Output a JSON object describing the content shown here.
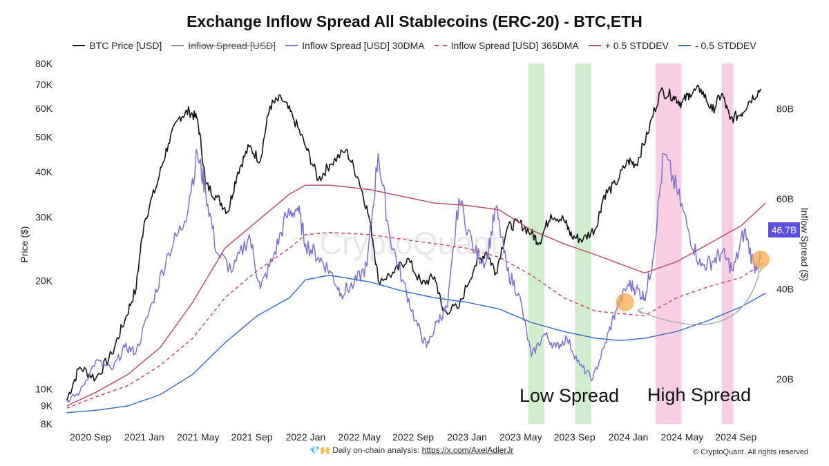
{
  "chart_data": {
    "type": "line",
    "title": "Exchange Inflow Spread All Stablecoins (ERC-20) - BTC,ETH",
    "legend": [
      {
        "name": "BTC Price [USD]",
        "color": "#111111",
        "style": "solid",
        "hidden": false
      },
      {
        "name": "Inflow Spread [USD]",
        "color": "#888888",
        "style": "solid",
        "hidden": true
      },
      {
        "name": "Inflow Spread [USD] 30DMA",
        "color": "#7b6fd6",
        "style": "solid",
        "hidden": false
      },
      {
        "name": "Inflow Spread [USD] 365DMA",
        "color": "#c94a5a",
        "style": "dashed",
        "hidden": false
      },
      {
        "name": "+ 0.5 STDDEV",
        "color": "#b5506a",
        "style": "solid",
        "hidden": false
      },
      {
        "name": "- 0.5 STDDEV",
        "color": "#3d6fc2",
        "style": "solid",
        "hidden": false
      }
    ],
    "x_ticks": [
      "2020 Sep",
      "2021 Jan",
      "2021 May",
      "2021 Sep",
      "2022 Jan",
      "2022 May",
      "2022 Sep",
      "2023 Jan",
      "2023 May",
      "2023 Sep",
      "2024 Jan",
      "2024 May",
      "2024 Sep"
    ],
    "y_left": {
      "label": "Price ($)",
      "scale": "log",
      "range": [
        8000,
        80000
      ],
      "ticks": [
        8000,
        9000,
        10000,
        20000,
        30000,
        40000,
        50000,
        60000,
        70000,
        80000
      ],
      "tick_labels": [
        "8K",
        "9K",
        "10K",
        "20K",
        "30K",
        "40K",
        "50K",
        "60K",
        "70K",
        "80K"
      ]
    },
    "y_right": {
      "label": "Inflow Spread ($)",
      "range": [
        10,
        90
      ],
      "unit": "B",
      "ticks": [
        20,
        40,
        60,
        80
      ],
      "tick_labels": [
        "20B",
        "40B",
        "60B",
        "80B"
      ]
    },
    "current_value_label": "46.7B",
    "time_range": [
      2020.5,
      2024.85
    ],
    "series": [
      {
        "name": "BTC Price [USD]",
        "axis": "left",
        "points": [
          [
            2020.52,
            9300
          ],
          [
            2020.6,
            11500
          ],
          [
            2020.7,
            10700
          ],
          [
            2020.8,
            12500
          ],
          [
            2020.88,
            15500
          ],
          [
            2020.95,
            19000
          ],
          [
            2021.0,
            29000
          ],
          [
            2021.08,
            37000
          ],
          [
            2021.15,
            48000
          ],
          [
            2021.22,
            57000
          ],
          [
            2021.28,
            59000
          ],
          [
            2021.33,
            56000
          ],
          [
            2021.38,
            37000
          ],
          [
            2021.45,
            34000
          ],
          [
            2021.52,
            31000
          ],
          [
            2021.58,
            40000
          ],
          [
            2021.65,
            47000
          ],
          [
            2021.72,
            43000
          ],
          [
            2021.78,
            61000
          ],
          [
            2021.85,
            64000
          ],
          [
            2021.92,
            57000
          ],
          [
            2022.0,
            47000
          ],
          [
            2022.08,
            38000
          ],
          [
            2022.15,
            42000
          ],
          [
            2022.25,
            46000
          ],
          [
            2022.33,
            38000
          ],
          [
            2022.4,
            29000
          ],
          [
            2022.45,
            20000
          ],
          [
            2022.55,
            21000
          ],
          [
            2022.63,
            23000
          ],
          [
            2022.72,
            19500
          ],
          [
            2022.8,
            20500
          ],
          [
            2022.85,
            16500
          ],
          [
            2022.95,
            16800
          ],
          [
            2023.05,
            22000
          ],
          [
            2023.12,
            24000
          ],
          [
            2023.18,
            21000
          ],
          [
            2023.25,
            28000
          ],
          [
            2023.32,
            29000
          ],
          [
            2023.4,
            27000
          ],
          [
            2023.45,
            25500
          ],
          [
            2023.52,
            30500
          ],
          [
            2023.6,
            29500
          ],
          [
            2023.65,
            26500
          ],
          [
            2023.72,
            26000
          ],
          [
            2023.8,
            28000
          ],
          [
            2023.85,
            34500
          ],
          [
            2023.92,
            37000
          ],
          [
            2024.0,
            43000
          ],
          [
            2024.05,
            42000
          ],
          [
            2024.12,
            51000
          ],
          [
            2024.2,
            67000
          ],
          [
            2024.28,
            65000
          ],
          [
            2024.33,
            62000
          ],
          [
            2024.38,
            66000
          ],
          [
            2024.45,
            68000
          ],
          [
            2024.52,
            59000
          ],
          [
            2024.58,
            66000
          ],
          [
            2024.63,
            56000
          ],
          [
            2024.7,
            58000
          ],
          [
            2024.75,
            63000
          ],
          [
            2024.82,
            68000
          ]
        ]
      },
      {
        "name": "Inflow Spread [USD] 30DMA",
        "axis": "right",
        "points": [
          [
            2020.52,
            15
          ],
          [
            2020.6,
            17
          ],
          [
            2020.7,
            24
          ],
          [
            2020.8,
            22
          ],
          [
            2020.88,
            27
          ],
          [
            2020.95,
            26
          ],
          [
            2021.05,
            37
          ],
          [
            2021.15,
            48
          ],
          [
            2021.25,
            55
          ],
          [
            2021.33,
            70
          ],
          [
            2021.38,
            62
          ],
          [
            2021.45,
            48
          ],
          [
            2021.55,
            44
          ],
          [
            2021.65,
            52
          ],
          [
            2021.72,
            40
          ],
          [
            2021.8,
            47
          ],
          [
            2021.88,
            56
          ],
          [
            2021.95,
            58
          ],
          [
            2022.0,
            50
          ],
          [
            2022.08,
            47
          ],
          [
            2022.15,
            44
          ],
          [
            2022.22,
            39
          ],
          [
            2022.3,
            41
          ],
          [
            2022.38,
            45
          ],
          [
            2022.45,
            70
          ],
          [
            2022.52,
            52
          ],
          [
            2022.6,
            42
          ],
          [
            2022.68,
            33
          ],
          [
            2022.75,
            27
          ],
          [
            2022.82,
            33
          ],
          [
            2022.88,
            36
          ],
          [
            2022.95,
            60
          ],
          [
            2023.05,
            48
          ],
          [
            2023.12,
            46
          ],
          [
            2023.18,
            58
          ],
          [
            2023.25,
            44
          ],
          [
            2023.32,
            39
          ],
          [
            2023.4,
            25
          ],
          [
            2023.48,
            30
          ],
          [
            2023.55,
            27
          ],
          [
            2023.62,
            29
          ],
          [
            2023.7,
            23
          ],
          [
            2023.78,
            20
          ],
          [
            2023.85,
            27
          ],
          [
            2023.92,
            35
          ],
          [
            2024.0,
            41
          ],
          [
            2024.05,
            40
          ],
          [
            2024.1,
            38
          ],
          [
            2024.15,
            46
          ],
          [
            2024.22,
            70
          ],
          [
            2024.3,
            62
          ],
          [
            2024.38,
            52
          ],
          [
            2024.45,
            45
          ],
          [
            2024.52,
            46
          ],
          [
            2024.58,
            48
          ],
          [
            2024.65,
            44
          ],
          [
            2024.72,
            53
          ],
          [
            2024.78,
            45
          ],
          [
            2024.83,
            46.7
          ]
        ]
      },
      {
        "name": "Inflow Spread [USD] 365DMA",
        "axis": "right",
        "points": [
          [
            2020.52,
            13.5
          ],
          [
            2020.7,
            16
          ],
          [
            2020.9,
            18.5
          ],
          [
            2021.1,
            23
          ],
          [
            2021.3,
            29
          ],
          [
            2021.5,
            38
          ],
          [
            2021.7,
            44
          ],
          [
            2021.9,
            49
          ],
          [
            2022.0,
            52
          ],
          [
            2022.15,
            52.5
          ],
          [
            2022.4,
            52
          ],
          [
            2022.6,
            51
          ],
          [
            2022.8,
            50
          ],
          [
            2023.0,
            49
          ],
          [
            2023.2,
            47
          ],
          [
            2023.4,
            43
          ],
          [
            2023.6,
            38
          ],
          [
            2023.8,
            35
          ],
          [
            2023.95,
            34.5
          ],
          [
            2024.1,
            34
          ],
          [
            2024.3,
            38
          ],
          [
            2024.5,
            40.5
          ],
          [
            2024.7,
            42.5
          ],
          [
            2024.85,
            46
          ]
        ]
      },
      {
        "name": "+ 0.5 STDDEV",
        "axis": "right",
        "points": [
          [
            2020.52,
            14
          ],
          [
            2020.7,
            17
          ],
          [
            2020.9,
            21
          ],
          [
            2021.1,
            27
          ],
          [
            2021.3,
            37
          ],
          [
            2021.5,
            49
          ],
          [
            2021.7,
            55
          ],
          [
            2021.9,
            61
          ],
          [
            2022.0,
            63
          ],
          [
            2022.15,
            63
          ],
          [
            2022.4,
            62
          ],
          [
            2022.6,
            60.5
          ],
          [
            2022.8,
            59
          ],
          [
            2023.0,
            58.5
          ],
          [
            2023.2,
            57.5
          ],
          [
            2023.4,
            53
          ],
          [
            2023.6,
            50
          ],
          [
            2023.8,
            47.5
          ],
          [
            2023.95,
            45.5
          ],
          [
            2024.1,
            43.5
          ],
          [
            2024.3,
            46
          ],
          [
            2024.5,
            50
          ],
          [
            2024.7,
            54
          ],
          [
            2024.85,
            59
          ]
        ]
      },
      {
        "name": "- 0.5 STDDEV",
        "axis": "right",
        "points": [
          [
            2020.52,
            12.5
          ],
          [
            2020.7,
            13
          ],
          [
            2020.9,
            14
          ],
          [
            2021.1,
            16.5
          ],
          [
            2021.3,
            21
          ],
          [
            2021.5,
            28
          ],
          [
            2021.7,
            34
          ],
          [
            2021.9,
            38
          ],
          [
            2022.0,
            42
          ],
          [
            2022.15,
            43
          ],
          [
            2022.4,
            41.5
          ],
          [
            2022.6,
            39.5
          ],
          [
            2022.8,
            38
          ],
          [
            2023.0,
            37
          ],
          [
            2023.2,
            35.5
          ],
          [
            2023.4,
            32.5
          ],
          [
            2023.6,
            30.5
          ],
          [
            2023.8,
            29
          ],
          [
            2023.95,
            28.5
          ],
          [
            2024.1,
            29
          ],
          [
            2024.3,
            30.5
          ],
          [
            2024.5,
            33
          ],
          [
            2024.7,
            36
          ],
          [
            2024.85,
            39
          ]
        ]
      }
    ],
    "bands": [
      {
        "from": 2023.38,
        "to": 2023.48,
        "color": "#c8ebc4"
      },
      {
        "from": 2023.67,
        "to": 2023.77,
        "color": "#c8ebc4"
      },
      {
        "from": 2024.17,
        "to": 2024.33,
        "color": "#f8c6dd"
      },
      {
        "from": 2024.58,
        "to": 2024.65,
        "color": "#f8c6dd"
      }
    ],
    "annotations": {
      "low_spread": "Low Spread",
      "high_spread": "High Spread"
    },
    "highlight_points": [
      [
        2023.98,
        37
      ],
      [
        2024.82,
        46.5
      ]
    ],
    "watermark": "CryptoQuant"
  },
  "footer": {
    "emoji": "💎🙌",
    "text": "Daily on-chain analysis:",
    "link": "https://x.com/AxelAdlerJr",
    "copyright": "© CryptoQuant. All rights reserved"
  }
}
